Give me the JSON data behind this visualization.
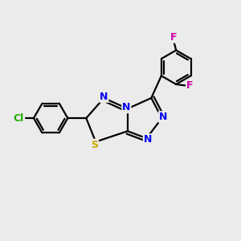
{
  "background_color": "#ebebeb",
  "bond_color": "#000000",
  "atom_colors": {
    "N": "#0000ee",
    "S": "#ccaa00",
    "Cl": "#22aa00",
    "F": "#cc00aa"
  },
  "figsize": [
    3.0,
    3.0
  ],
  "dpi": 100
}
